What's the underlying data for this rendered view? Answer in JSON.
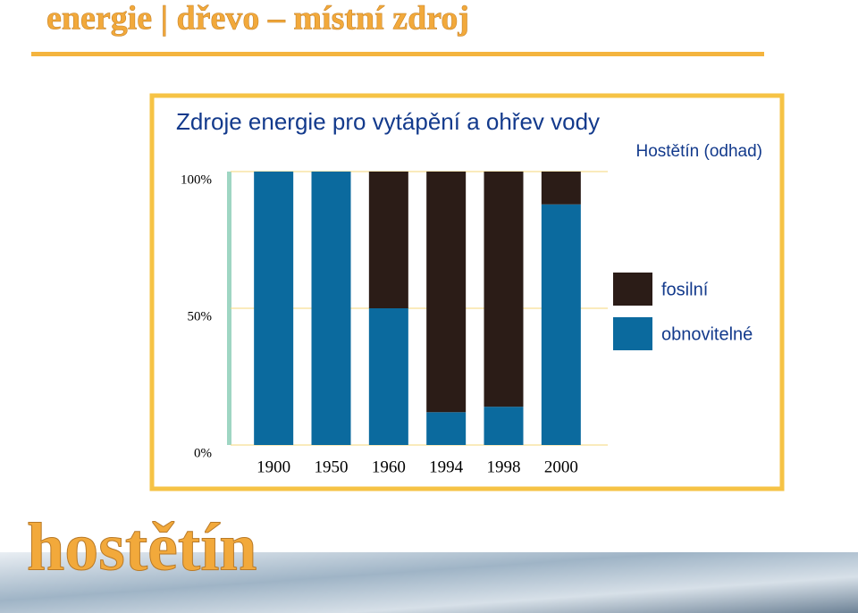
{
  "header": {
    "title": "energie | dřevo – místní zdroj",
    "logo": "hostětín"
  },
  "chart_data": {
    "type": "stacked-bar",
    "title": "Zdroje energie pro vytápění a ohřev vody",
    "subtitle": "Hostětín (odhad)",
    "categories": [
      "1900",
      "1950",
      "1960",
      "1994",
      "1998",
      "2000"
    ],
    "series": [
      {
        "name": "obnovitelné",
        "color": "#0b6a9e",
        "values": [
          100,
          100,
          50,
          12,
          14,
          88
        ]
      },
      {
        "name": "fosilní",
        "color": "#2b1c17",
        "values": [
          0,
          0,
          50,
          88,
          86,
          12
        ]
      }
    ],
    "ylim": [
      0,
      100
    ],
    "yticks": [
      {
        "value": 0,
        "label": "0%"
      },
      {
        "value": 50,
        "label": "50%"
      },
      {
        "value": 100,
        "label": "100%"
      }
    ],
    "grid": true,
    "legend": "right"
  }
}
